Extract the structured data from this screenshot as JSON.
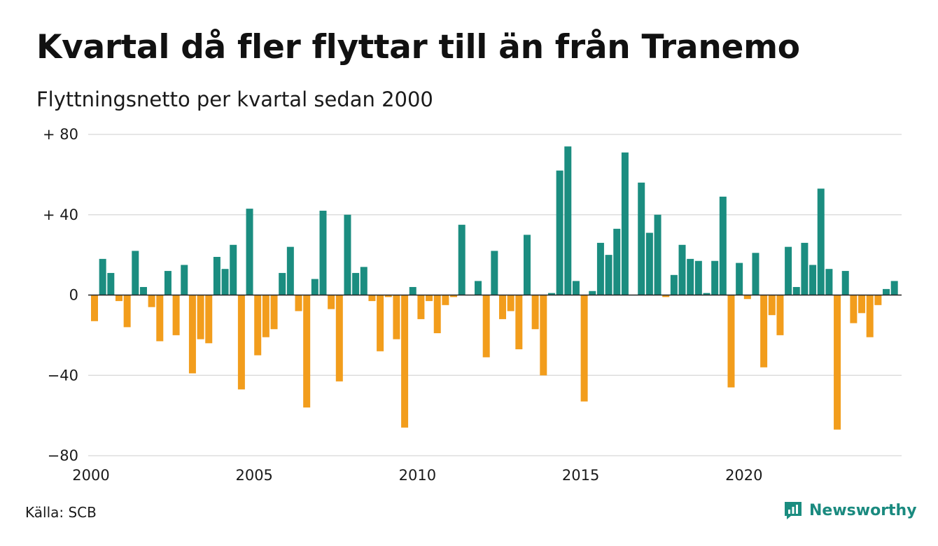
{
  "header": {
    "title": "Kvartal då fler flyttar till än från Tranemo",
    "subtitle": "Flyttningsnetto per kvartal sedan 2000"
  },
  "footer": {
    "source": "Källa: SCB",
    "brand": "Newsworthy",
    "brand_icon": "newsworthy-logo-icon"
  },
  "colors": {
    "positive": "#1b8d80",
    "negative": "#f29d1c",
    "grid": "#dddddd",
    "axis": "#222222"
  },
  "chart_data": {
    "type": "bar",
    "x_start": "2000 Q1",
    "y_ticks": [
      80,
      40,
      0,
      -40,
      -80
    ],
    "y_tick_labels": [
      "+ 80",
      "+ 40",
      "0",
      "−40",
      "−80"
    ],
    "x_tick_labels": [
      "2000",
      "2005",
      "2010",
      "2015",
      "2020"
    ],
    "ylim": [
      -80,
      80
    ],
    "grid": true,
    "values": [
      -13,
      18,
      11,
      -3,
      -16,
      22,
      4,
      -6,
      -23,
      12,
      -20,
      15,
      -39,
      -22,
      -24,
      19,
      13,
      25,
      -47,
      43,
      -30,
      -21,
      -17,
      11,
      24,
      -8,
      -56,
      8,
      42,
      -7,
      -43,
      40,
      11,
      14,
      -3,
      -28,
      -1,
      -22,
      -66,
      4,
      -12,
      -3,
      -19,
      -5,
      -1,
      35,
      0,
      7,
      -31,
      22,
      -12,
      -8,
      -27,
      30,
      -17,
      -40,
      1,
      62,
      74,
      7,
      -53,
      2,
      26,
      20,
      33,
      71,
      0,
      56,
      31,
      40,
      -1,
      10,
      25,
      18,
      17,
      1,
      17,
      49,
      -46,
      16,
      -2,
      21,
      -36,
      -10,
      -20,
      24,
      4,
      26,
      15,
      53,
      13,
      -67,
      12,
      -14,
      -9,
      -21,
      -5,
      3,
      7
    ]
  }
}
